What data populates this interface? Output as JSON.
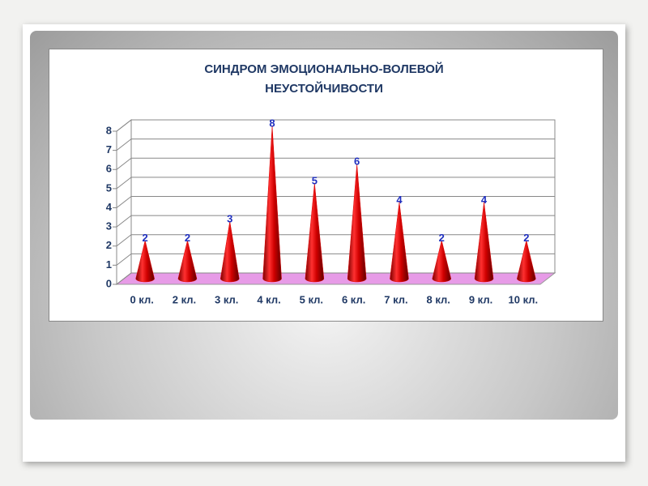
{
  "chart_data": {
    "type": "cone",
    "title": "СИНДРОМ ЭМОЦИОНАЛЬНО-ВОЛЕВОЙ НЕУСТОЙЧИВОСТИ",
    "categories": [
      "0 кл.",
      "2 кл.",
      "3 кл.",
      "4 кл.",
      "5 кл.",
      "6 кл.",
      "7 кл.",
      "8 кл.",
      "9 кл.",
      "10 кл."
    ],
    "values": [
      2,
      2,
      3,
      8,
      5,
      6,
      4,
      2,
      4,
      2
    ],
    "color": "#e00000",
    "ylim": [
      0,
      8
    ],
    "yticks": [
      0,
      1,
      2,
      3,
      4,
      5,
      6,
      7,
      8
    ],
    "grid": true
  }
}
